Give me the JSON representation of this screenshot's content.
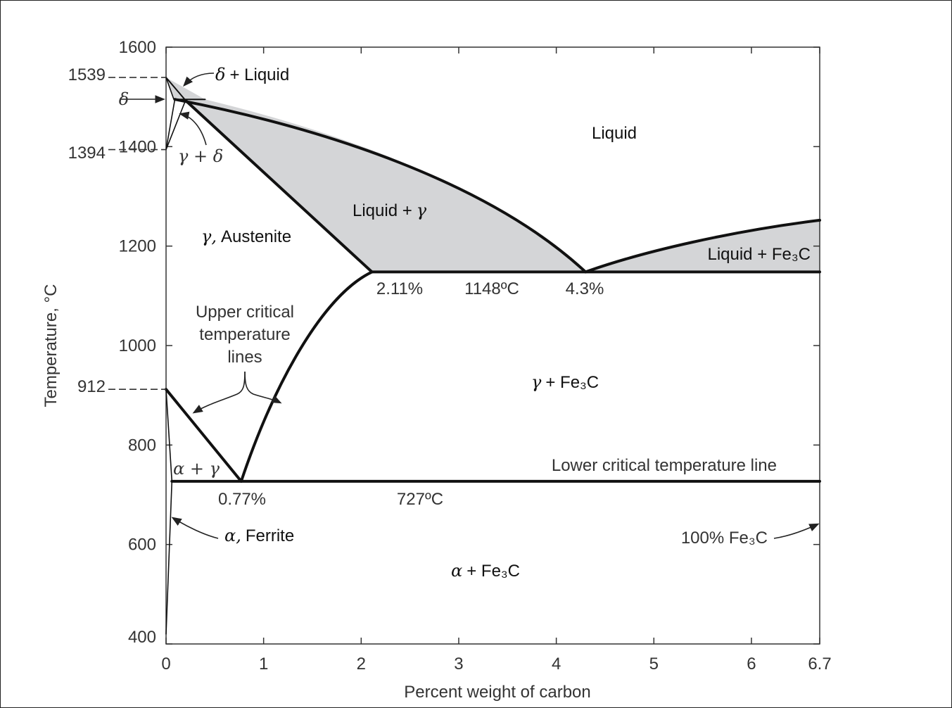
{
  "chart_data": {
    "type": "phase-diagram",
    "xlabel": "Percent weight of carbon",
    "ylabel": "Temperature, °C",
    "xlim": [
      0,
      6.7
    ],
    "ylim": [
      400,
      1600
    ],
    "x_ticks": [
      "0",
      "1",
      "2",
      "3",
      "4",
      "5",
      "6",
      "6.7"
    ],
    "y_ticks": [
      "400",
      "600",
      "800",
      "1000",
      "1200",
      "1400",
      "1600"
    ],
    "marked_temperatures": [
      "1539",
      "1394",
      "912"
    ],
    "delta_marker": "δ",
    "regions": {
      "liquid": "Liquid",
      "delta_liquid": {
        "greek": "δ",
        "text": "+ Liquid"
      },
      "gamma_delta": "γ + δ",
      "liquid_gamma": {
        "text": "Liquid +",
        "greek": "γ"
      },
      "austenite": {
        "greek": "γ,",
        "text": "Austenite"
      },
      "liquid_fe3c": "Liquid + Fe₃C",
      "gamma_fe3c": {
        "greek": "γ",
        "text": "+ Fe₃C"
      },
      "alpha_gamma": "α + γ",
      "ferrite": {
        "greek": "α,",
        "text": "Ferrite"
      },
      "alpha_fe3c": {
        "greek": "α",
        "text": "+ Fe₃C"
      }
    },
    "annotations": {
      "pct_2_11": "2.11%",
      "temp_1148": "1148ºC",
      "pct_4_3": "4.3%",
      "pct_0_77": "0.77%",
      "temp_727": "727ºC",
      "upper_critical": [
        "Upper critical",
        "temperature",
        "lines"
      ],
      "lower_critical": "Lower critical temperature line",
      "fe3c_100": "100% Fe₃C"
    },
    "key_points": {
      "eutectic": {
        "x": 4.3,
        "y": 1148
      },
      "eutectoid": {
        "x": 0.77,
        "y": 727
      },
      "max_austenite_solubility": {
        "x": 2.11,
        "y": 1148
      },
      "iron_melting": {
        "x": 0,
        "y": 1539
      },
      "iron_delta_gamma": {
        "x": 0,
        "y": 1394
      },
      "iron_gamma_alpha": {
        "x": 0,
        "y": 912
      }
    },
    "fill_color": "#d4d5d7",
    "line_color": "#111111"
  }
}
